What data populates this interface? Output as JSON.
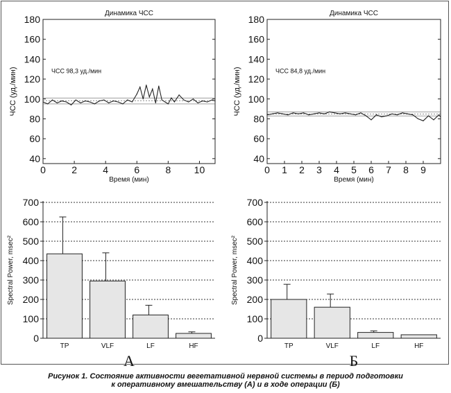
{
  "caption": {
    "line1": "Рисунок 1. Состояние активности вегетативной нервной системы в период подготовки",
    "line2": "к оперативному вмешательству (А) и в ходе операции (Б)"
  },
  "colors": {
    "line": "#222222",
    "bar_fill": "#e6e6e6",
    "grid": "#333333"
  },
  "chart_data": [
    {
      "type": "line",
      "panel": "А-top",
      "title": "Динамика ЧСС",
      "xlabel": "Время (мин)",
      "ylabel": "ЧСС (уд./мин)",
      "annotation": "ЧСС  98,3 уд./мин",
      "xlim": [
        0,
        11
      ],
      "ylim": [
        35,
        180
      ],
      "xticks": [
        0,
        2,
        4,
        6,
        8,
        10
      ],
      "yticks": [
        40,
        60,
        80,
        100,
        120,
        140,
        160,
        180
      ],
      "mean": 98.3,
      "band": [
        95,
        101
      ],
      "series": [
        {
          "x": [
            0,
            0.3,
            0.6,
            0.9,
            1.2,
            1.5,
            1.8,
            2.1,
            2.4,
            2.7,
            3.0,
            3.3,
            3.6,
            3.9,
            4.2,
            4.5,
            4.8,
            5.1,
            5.4,
            5.7,
            6.0,
            6.2,
            6.4,
            6.6,
            6.8,
            7.0,
            7.2,
            7.4,
            7.6,
            7.8,
            8.0,
            8.2,
            8.4,
            8.7,
            9.0,
            9.3,
            9.6,
            9.9,
            10.2,
            10.5,
            10.8,
            11.0
          ],
          "y": [
            97,
            95,
            99,
            96,
            98,
            97,
            94,
            99,
            96,
            98,
            97,
            95,
            98,
            99,
            96,
            98,
            97,
            95,
            99,
            97,
            105,
            112,
            100,
            114,
            102,
            110,
            96,
            113,
            99,
            97,
            95,
            101,
            97,
            104,
            99,
            97,
            100,
            96,
            98,
            97,
            99,
            98
          ]
        }
      ]
    },
    {
      "type": "line",
      "panel": "Б-top",
      "title": "Динамика ЧСС",
      "xlabel": "Время (мин)",
      "ylabel": "ЧСС (уд./мин)",
      "annotation": "ЧСС  84,8 уд./мин",
      "xlim": [
        0,
        10
      ],
      "ylim": [
        35,
        180
      ],
      "xticks": [
        0,
        1,
        2,
        3,
        4,
        5,
        6,
        7,
        8,
        9
      ],
      "yticks": [
        40,
        60,
        80,
        100,
        120,
        140,
        160,
        180
      ],
      "mean": 84.8,
      "band": [
        83,
        87
      ],
      "series": [
        {
          "x": [
            0,
            0.3,
            0.6,
            0.9,
            1.2,
            1.5,
            1.8,
            2.1,
            2.4,
            2.7,
            3.0,
            3.3,
            3.6,
            3.9,
            4.2,
            4.5,
            4.8,
            5.1,
            5.4,
            5.7,
            6.0,
            6.3,
            6.6,
            6.9,
            7.2,
            7.5,
            7.8,
            8.1,
            8.4,
            8.7,
            9.0,
            9.3,
            9.6,
            9.9,
            10.0
          ],
          "y": [
            84,
            85,
            86,
            85,
            84,
            86,
            85,
            86,
            84,
            85,
            86,
            85,
            87,
            86,
            85,
            86,
            85,
            84,
            86,
            83,
            79,
            84,
            82,
            83,
            85,
            84,
            86,
            85,
            84,
            80,
            78,
            83,
            79,
            84,
            82
          ]
        }
      ]
    },
    {
      "type": "bar",
      "panel": "А-bottom",
      "label": "А",
      "categories": [
        "TP",
        "VLF",
        "LF",
        "HF"
      ],
      "values": [
        435,
        295,
        120,
        25
      ],
      "errors": [
        190,
        145,
        50,
        8
      ],
      "ylabel": "Spectral Power, msec²",
      "ylim": [
        0,
        700
      ],
      "yticks": [
        0,
        100,
        200,
        300,
        400,
        500,
        600,
        700
      ],
      "grid": "dotted"
    },
    {
      "type": "bar",
      "panel": "Б-bottom",
      "label": "Б",
      "categories": [
        "TP",
        "VLF",
        "LF",
        "HF"
      ],
      "values": [
        200,
        160,
        30,
        18
      ],
      "errors": [
        78,
        68,
        8,
        0
      ],
      "ylabel": "Spectral Power, msec²",
      "ylim": [
        0,
        700
      ],
      "yticks": [
        0,
        100,
        200,
        300,
        400,
        500,
        600,
        700
      ],
      "grid": "dotted"
    }
  ]
}
